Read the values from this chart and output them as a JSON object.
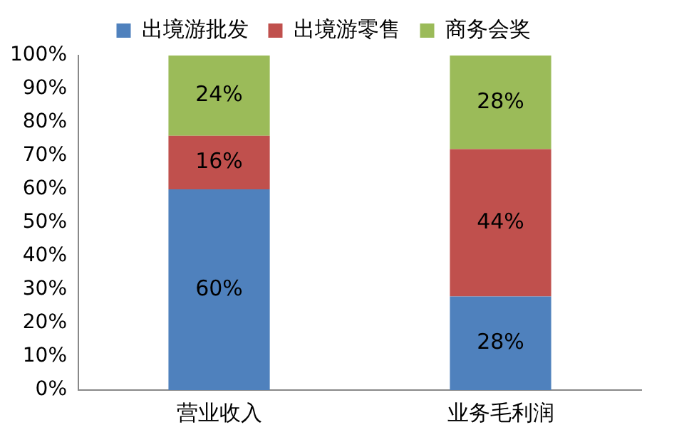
{
  "chart_data": {
    "type": "bar",
    "stacked": true,
    "categories": [
      "营业收入",
      "业务毛利润"
    ],
    "series": [
      {
        "name": "出境游批发",
        "color": "#4f81bd",
        "values": [
          60,
          28
        ],
        "value_labels": [
          "60%",
          "28%"
        ]
      },
      {
        "name": "出境游零售",
        "color": "#c0504d",
        "values": [
          16,
          44
        ],
        "value_labels": [
          "16%",
          "44%"
        ]
      },
      {
        "name": "商务会奖",
        "color": "#9bbb59",
        "values": [
          24,
          28
        ],
        "value_labels": [
          "24%",
          "28%"
        ]
      }
    ],
    "ylim": [
      0,
      100
    ],
    "yticks": [
      {
        "value": 0,
        "label": "0%"
      },
      {
        "value": 10,
        "label": "10%"
      },
      {
        "value": 20,
        "label": "20%"
      },
      {
        "value": 30,
        "label": "30%"
      },
      {
        "value": 40,
        "label": "40%"
      },
      {
        "value": 50,
        "label": "50%"
      },
      {
        "value": 60,
        "label": "60%"
      },
      {
        "value": 70,
        "label": "70%"
      },
      {
        "value": 80,
        "label": "80%"
      },
      {
        "value": 90,
        "label": "90%"
      },
      {
        "value": 100,
        "label": "100%"
      }
    ],
    "grid": false,
    "legend": "top"
  }
}
